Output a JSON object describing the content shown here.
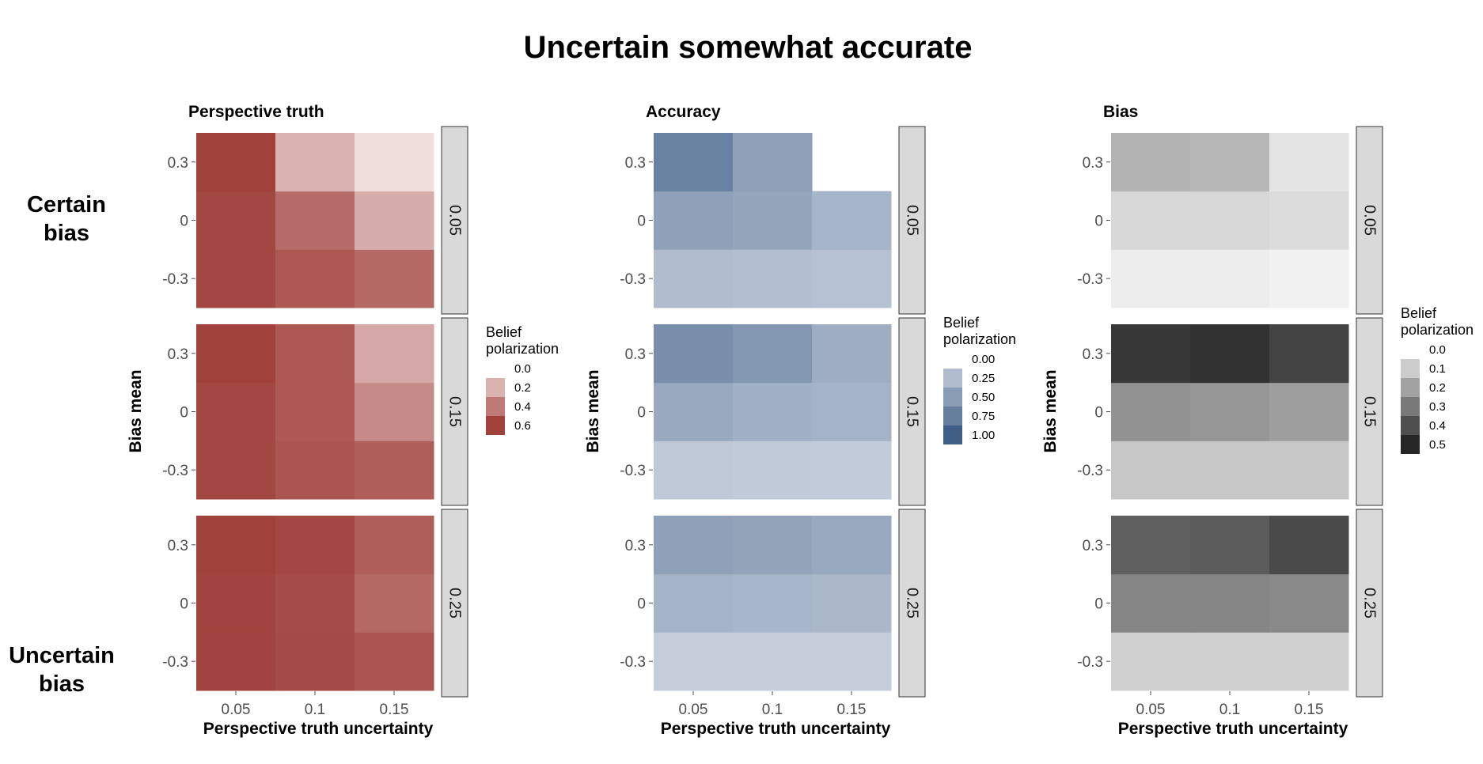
{
  "figure_title": "Uncertain somewhat accurate",
  "row_labels": [
    "Certain bias",
    "Uncertain bias"
  ],
  "chart_data": [
    {
      "type": "heatmap",
      "title": "Perspective truth",
      "xlabel": "Perspective truth uncertainty",
      "ylabel": "Bias mean",
      "x_categories": [
        "0.05",
        "0.1",
        "0.15"
      ],
      "y_categories": [
        "-0.3",
        "0",
        "0.3"
      ],
      "facet_label_position": "right",
      "legend_placement": "right",
      "legend": {
        "title": "Belief polarization",
        "ticks": [
          "0.0",
          "0.2",
          "0.4",
          "0.6"
        ],
        "low_color": "#f7ecec",
        "high_color": "#a0413c",
        "range": [
          0,
          0.6
        ]
      },
      "facets": [
        {
          "label": "0.05",
          "values": [
            [
              0.58,
              0.52,
              0.46
            ],
            [
              0.58,
              0.45,
              0.22
            ],
            [
              0.6,
              0.2,
              0.05
            ]
          ]
        },
        {
          "label": "0.15",
          "values": [
            [
              0.58,
              0.53,
              0.5
            ],
            [
              0.58,
              0.52,
              0.34
            ],
            [
              0.62,
              0.52,
              0.24
            ]
          ]
        },
        {
          "label": "0.25",
          "values": [
            [
              0.59,
              0.57,
              0.53
            ],
            [
              0.59,
              0.56,
              0.46
            ],
            [
              0.62,
              0.58,
              0.5
            ]
          ]
        }
      ]
    },
    {
      "type": "heatmap",
      "title": "Accuracy",
      "xlabel": "Perspective truth uncertainty",
      "ylabel": "Bias mean",
      "x_categories": [
        "0.05",
        "0.1",
        "0.15"
      ],
      "y_categories": [
        "-0.3",
        "0",
        "0.3"
      ],
      "facet_label_position": "right",
      "legend_placement": "right",
      "legend": {
        "title": "Belief polarization",
        "ticks": [
          "0.00",
          "0.25",
          "0.50",
          "0.75",
          "1.00"
        ],
        "low_color": "#d5dbe5",
        "high_color": "#3f5f86",
        "range": [
          0,
          1.0
        ]
      },
      "facets": [
        {
          "label": "0.05",
          "values": [
            [
              0.25,
              0.23,
              0.21
            ],
            [
              0.47,
              0.43,
              0.31
            ],
            [
              0.72,
              0.47,
              null
            ]
          ]
        },
        {
          "label": "0.15",
          "values": [
            [
              0.15,
              0.14,
              0.13
            ],
            [
              0.4,
              0.35,
              0.32
            ],
            [
              0.62,
              0.55,
              0.37
            ]
          ]
        },
        {
          "label": "0.25",
          "values": [
            [
              0.11,
              0.11,
              0.11
            ],
            [
              0.32,
              0.3,
              0.28
            ],
            [
              0.47,
              0.45,
              0.41
            ]
          ]
        }
      ]
    },
    {
      "type": "heatmap",
      "title": "Bias",
      "xlabel": "Perspective truth uncertainty",
      "ylabel": "Bias mean",
      "x_categories": [
        "0.05",
        "0.1",
        "0.15"
      ],
      "y_categories": [
        "-0.3",
        "0",
        "0.3"
      ],
      "facet_label_position": "right",
      "legend_placement": "right",
      "legend": {
        "title": "Belief polarization",
        "ticks": [
          "0.0",
          "0.1",
          "0.2",
          "0.3",
          "0.4",
          "0.5"
        ],
        "low_color": "#f5f5f5",
        "high_color": "#262626",
        "range": [
          0,
          0.5
        ]
      },
      "facets": [
        {
          "label": "0.05",
          "values": [
            [
              0.02,
              0.02,
              0.01
            ],
            [
              0.07,
              0.07,
              0.06
            ],
            [
              0.16,
              0.15,
              0.04
            ]
          ]
        },
        {
          "label": "0.15",
          "values": [
            [
              0.11,
              0.11,
              0.11
            ],
            [
              0.24,
              0.23,
              0.21
            ],
            [
              0.46,
              0.47,
              0.43
            ]
          ]
        },
        {
          "label": "0.25",
          "values": [
            [
              0.09,
              0.09,
              0.09
            ],
            [
              0.27,
              0.27,
              0.26
            ],
            [
              0.36,
              0.37,
              0.41
            ]
          ]
        }
      ]
    }
  ]
}
